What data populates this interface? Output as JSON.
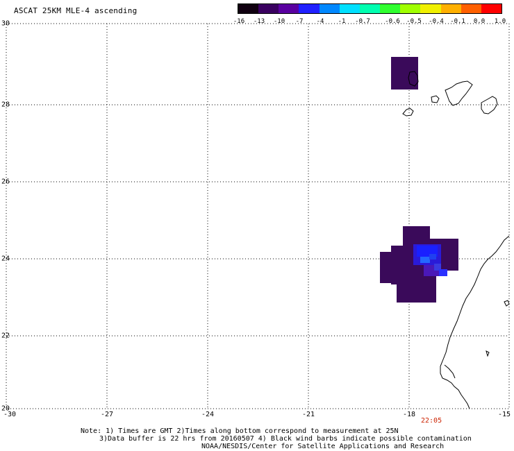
{
  "title": "ASCAT 25KM MLE-4 ascending",
  "colorbar": {
    "labels": [
      "-16",
      "-13",
      "-10",
      "-7",
      "-4",
      "-1",
      "-0.7",
      "-0.6",
      "-0.5",
      "-0.4",
      "-0.1",
      "0.0",
      "1.0"
    ],
    "colors": [
      "#100010",
      "#3a0060",
      "#5a00a0",
      "#2020ff",
      "#0088ff",
      "#00e0ff",
      "#00ffb0",
      "#30ff30",
      "#a0ff00",
      "#f0f000",
      "#ffb000",
      "#ff6000",
      "#ff0000"
    ]
  },
  "map": {
    "lat_labels": [
      "30",
      "28",
      "26",
      "24",
      "22",
      "20"
    ],
    "lon_labels": [
      "-30",
      "-27",
      "-24",
      "-21",
      "-18",
      "-15"
    ],
    "time_label": "22:05",
    "time_color": "#cc2200"
  },
  "notes": {
    "line1": "Note: 1) Times are GMT 2)Times along bottom correspond to measurement at 25N",
    "line2": "3)Data buffer is 22 hrs from 20160507 4) Black wind barbs indicate possible contamination",
    "line3": "NOAA/NESDIS/Center for Satellite Applications and Research"
  }
}
